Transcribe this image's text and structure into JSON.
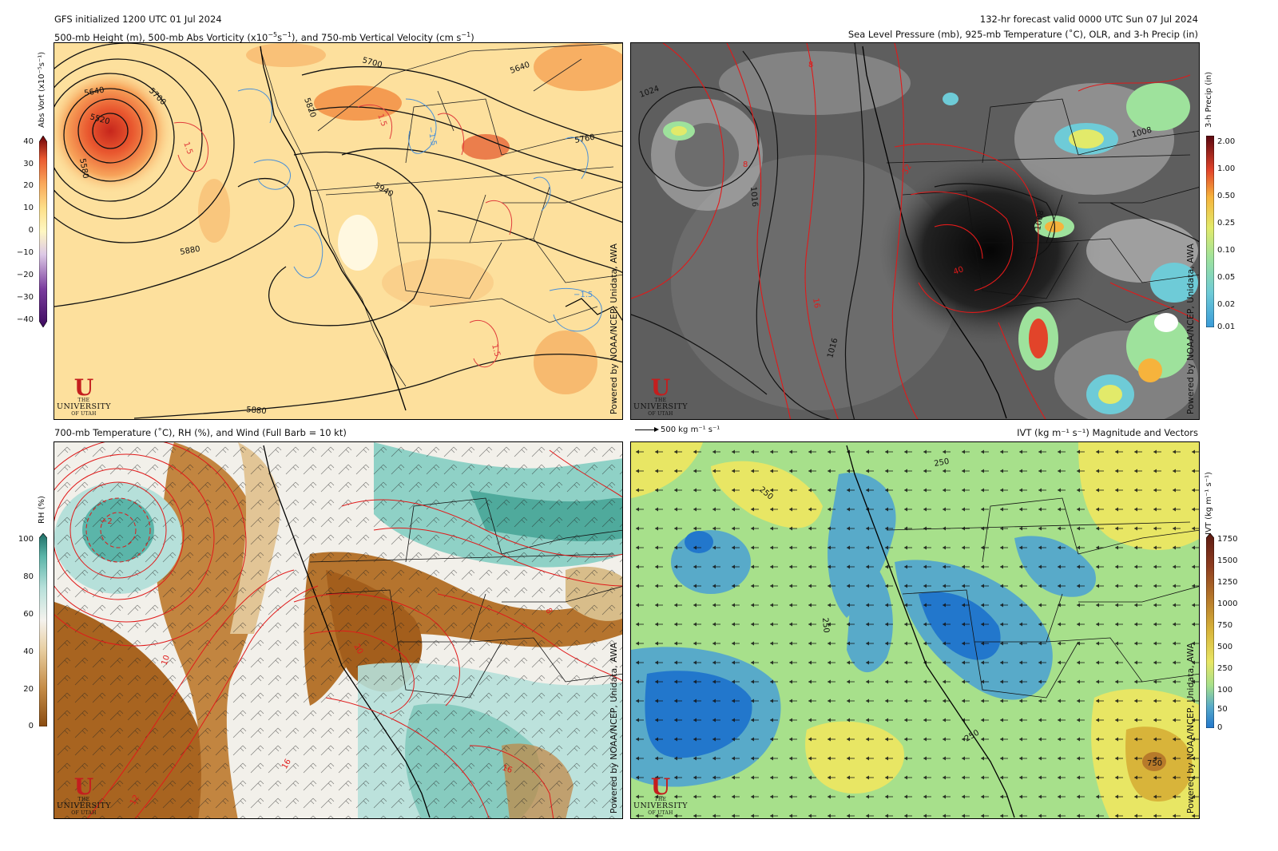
{
  "header": {
    "init_line": "GFS initialized 1200 UTC 01 Jul 2024",
    "valid_line": "132-hr forecast valid 0000 UTC Sun 07 Jul 2024"
  },
  "panels": {
    "top_left": {
      "title_main": "500-mb Height (m), 500-mb Abs Vorticity (x10",
      "title_exp": "−5",
      "title_mid": "s",
      "title_exp2": "−1",
      "title_end": "), and 750-mb Vertical Velocity (cm s",
      "title_exp3": "−1",
      "title_close": ")",
      "colorbar_title": "Abs Vort (x10⁻⁵s⁻¹)",
      "colorbar_ticks": [
        "40",
        "30",
        "20",
        "10",
        "0",
        "−10",
        "−20",
        "−30",
        "−40"
      ],
      "height_labels": [
        "5700",
        "5640",
        "5640",
        "5520",
        "5700",
        "5580",
        "5820",
        "5760",
        "5940",
        "5880",
        "5880"
      ],
      "omega_labels": [
        "1.5",
        "−1.5",
        "1.5",
        "−1.5",
        "1.5"
      ],
      "small_label": "5760"
    },
    "top_right": {
      "title": "Sea Level Pressure (mb), 925-mb Temperature (˚C), OLR, and 3-h Precip (in)",
      "colorbar_title": "3-h Precip (in)",
      "colorbar_ticks": [
        "2.00",
        "1.00",
        "0.50",
        "0.25",
        "0.10",
        "0.05",
        "0.02",
        "0.01"
      ],
      "pressure_labels": [
        "1024",
        "1016",
        "1016",
        "1008",
        "1008"
      ],
      "temp_labels": [
        "8",
        "8",
        "16",
        "32",
        "40"
      ]
    },
    "bottom_left": {
      "title": "700-mb Temperature (˚C), RH (%), and Wind (Full Barb = 10 kt)",
      "colorbar_title": "RH (%)",
      "colorbar_ticks": [
        "100",
        "80",
        "60",
        "40",
        "20",
        "0"
      ],
      "temp_labels": [
        "−2",
        "10",
        "12",
        "16",
        "20",
        "16",
        "8"
      ]
    },
    "bottom_right": {
      "title": "IVT (kg m⁻¹ s⁻¹) Magnitude and Vectors",
      "reference_arrow": "500 kg m⁻¹ s⁻¹",
      "colorbar_title": "IVT (kg m⁻¹ s⁻¹)",
      "colorbar_ticks": [
        "1750",
        "1500",
        "1250",
        "1000",
        "750",
        "500",
        "250",
        "100",
        "50",
        "0"
      ],
      "ivt_labels": [
        "250",
        "250",
        "250",
        "250",
        "750"
      ]
    }
  },
  "branding": {
    "credit": "Powered by NOAA/NCEP, Unidata, AWA",
    "logo_letter": "U",
    "logo_the": "THE",
    "logo_name": "UNIVERSITY",
    "logo_of": "OF UTAH"
  },
  "colors": {
    "vort_scale": [
      "#3d0a5e",
      "#7a3c9e",
      "#b488c6",
      "#ddc9e6",
      "#fff7c2",
      "#fde08a",
      "#f9a85a",
      "#e9582f",
      "#b3121a",
      "#6b0008"
    ],
    "precip_scale": [
      "#3a9bd8",
      "#6ecbd7",
      "#9ee29c",
      "#e2ea6a",
      "#f6b33c",
      "#e2442a",
      "#a3121b",
      "#5a0710"
    ],
    "rh_scale": [
      "#a05a14",
      "#c58c46",
      "#e8cfa2",
      "#f5f3ee",
      "#b6e0da",
      "#5bb5a9",
      "#1e6e66"
    ],
    "ivt_scale": [
      "#2277cc",
      "#58aac9",
      "#a7e08b",
      "#e8e664",
      "#d8b43a",
      "#b77a2a",
      "#8e3d20",
      "#5c1a12"
    ],
    "contour_red": "#e01a1a",
    "contour_blue": "#4a90d8"
  }
}
